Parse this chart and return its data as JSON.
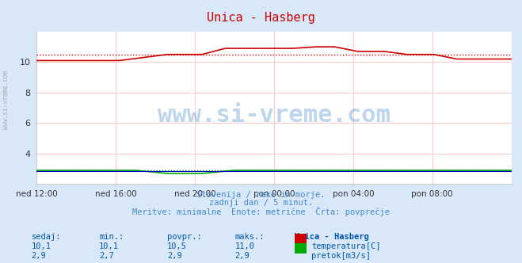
{
  "title": "Unica - Hasberg",
  "bg_color": "#d8e8f8",
  "plot_bg_color": "#ffffff",
  "grid_color": "#ffcccc",
  "xlabel_ticks": [
    "ned 12:00",
    "ned 16:00",
    "ned 20:00",
    "pon 00:00",
    "pon 04:00",
    "pon 08:00"
  ],
  "tick_positions": [
    0.0,
    0.167,
    0.333,
    0.5,
    0.667,
    0.833
  ],
  "ylim": [
    2.0,
    12.0
  ],
  "yticks": [
    4,
    6,
    8,
    10
  ],
  "temp_color": "#cc0000",
  "flow_color": "#00aa00",
  "height_color": "#0000cc",
  "avg_temp": 10.5,
  "avg_flow": 2.9,
  "subtitle1": "Slovenija / reke in morje.",
  "subtitle2": "zadnji dan / 5 minut.",
  "subtitle3": "Meritve: minimalne  Enote: metrične  Črta: povprečje",
  "footer_label1": "sedaj:",
  "footer_label2": "min.:",
  "footer_label3": "povpr.:",
  "footer_label4": "maks.:",
  "footer_label5": "Unica - Hasberg",
  "footer_color": "#0055aa",
  "watermark": "www.si-vreme.com",
  "watermark_color": "#4488cc",
  "left_label": "www.si-vreme.com",
  "n_points": 288
}
